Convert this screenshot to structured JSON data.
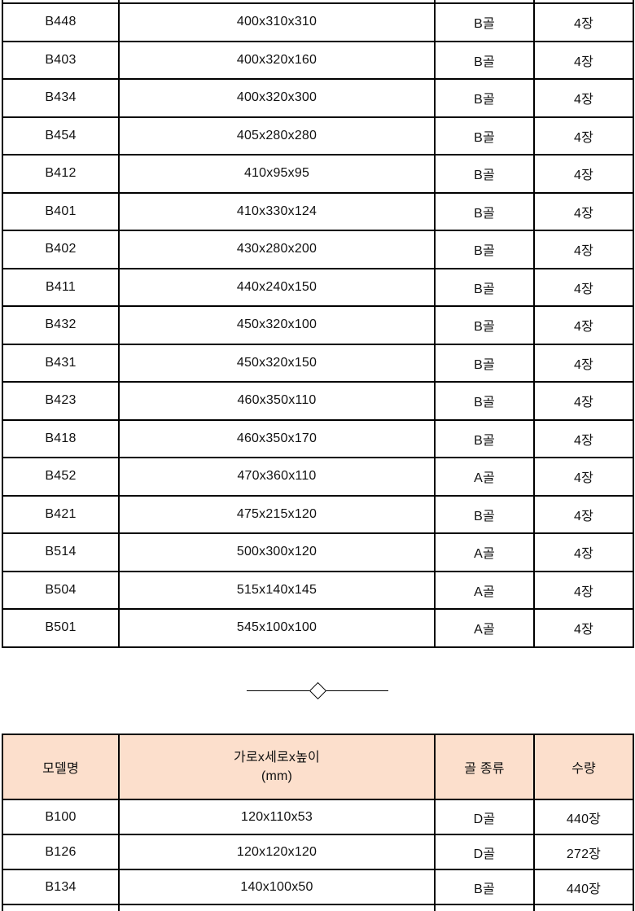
{
  "colors": {
    "background": "#ffffff",
    "table_border": "#000000",
    "header_fill": "#fcdfcc",
    "text": "#111111"
  },
  "divider": {
    "type": "line-with-diamond"
  },
  "upper_table": {
    "rows": [
      {
        "model": "B448",
        "size": "400x310x310",
        "flute": "B골",
        "qty": "4장"
      },
      {
        "model": "B403",
        "size": "400x320x160",
        "flute": "B골",
        "qty": "4장"
      },
      {
        "model": "B434",
        "size": "400x320x300",
        "flute": "B골",
        "qty": "4장"
      },
      {
        "model": "B454",
        "size": "405x280x280",
        "flute": "B골",
        "qty": "4장"
      },
      {
        "model": "B412",
        "size": "410x95x95",
        "flute": "B골",
        "qty": "4장"
      },
      {
        "model": "B401",
        "size": "410x330x124",
        "flute": "B골",
        "qty": "4장"
      },
      {
        "model": "B402",
        "size": "430x280x200",
        "flute": "B골",
        "qty": "4장"
      },
      {
        "model": "B411",
        "size": "440x240x150",
        "flute": "B골",
        "qty": "4장"
      },
      {
        "model": "B432",
        "size": "450x320x100",
        "flute": "B골",
        "qty": "4장"
      },
      {
        "model": "B431",
        "size": "450x320x150",
        "flute": "B골",
        "qty": "4장"
      },
      {
        "model": "B423",
        "size": "460x350x110",
        "flute": "B골",
        "qty": "4장"
      },
      {
        "model": "B418",
        "size": "460x350x170",
        "flute": "B골",
        "qty": "4장"
      },
      {
        "model": "B452",
        "size": "470x360x110",
        "flute": "A골",
        "qty": "4장"
      },
      {
        "model": "B421",
        "size": "475x215x120",
        "flute": "B골",
        "qty": "4장"
      },
      {
        "model": "B514",
        "size": "500x300x120",
        "flute": "A골",
        "qty": "4장"
      },
      {
        "model": "B504",
        "size": "515x140x145",
        "flute": "A골",
        "qty": "4장"
      },
      {
        "model": "B501",
        "size": "545x100x100",
        "flute": "A골",
        "qty": "4장"
      }
    ]
  },
  "lower_table": {
    "header": {
      "model": "모델명",
      "size_line1": "가로x세로x높이",
      "size_line2": "(mm)",
      "flute": "골 종류",
      "qty": "수량"
    },
    "rows": [
      {
        "model": "B100",
        "size": "120x110x53",
        "flute": "D골",
        "qty": "440장"
      },
      {
        "model": "B126",
        "size": "120x120x120",
        "flute": "D골",
        "qty": "272장"
      },
      {
        "model": "B134",
        "size": "140x100x50",
        "flute": "B골",
        "qty": "440장"
      }
    ]
  }
}
